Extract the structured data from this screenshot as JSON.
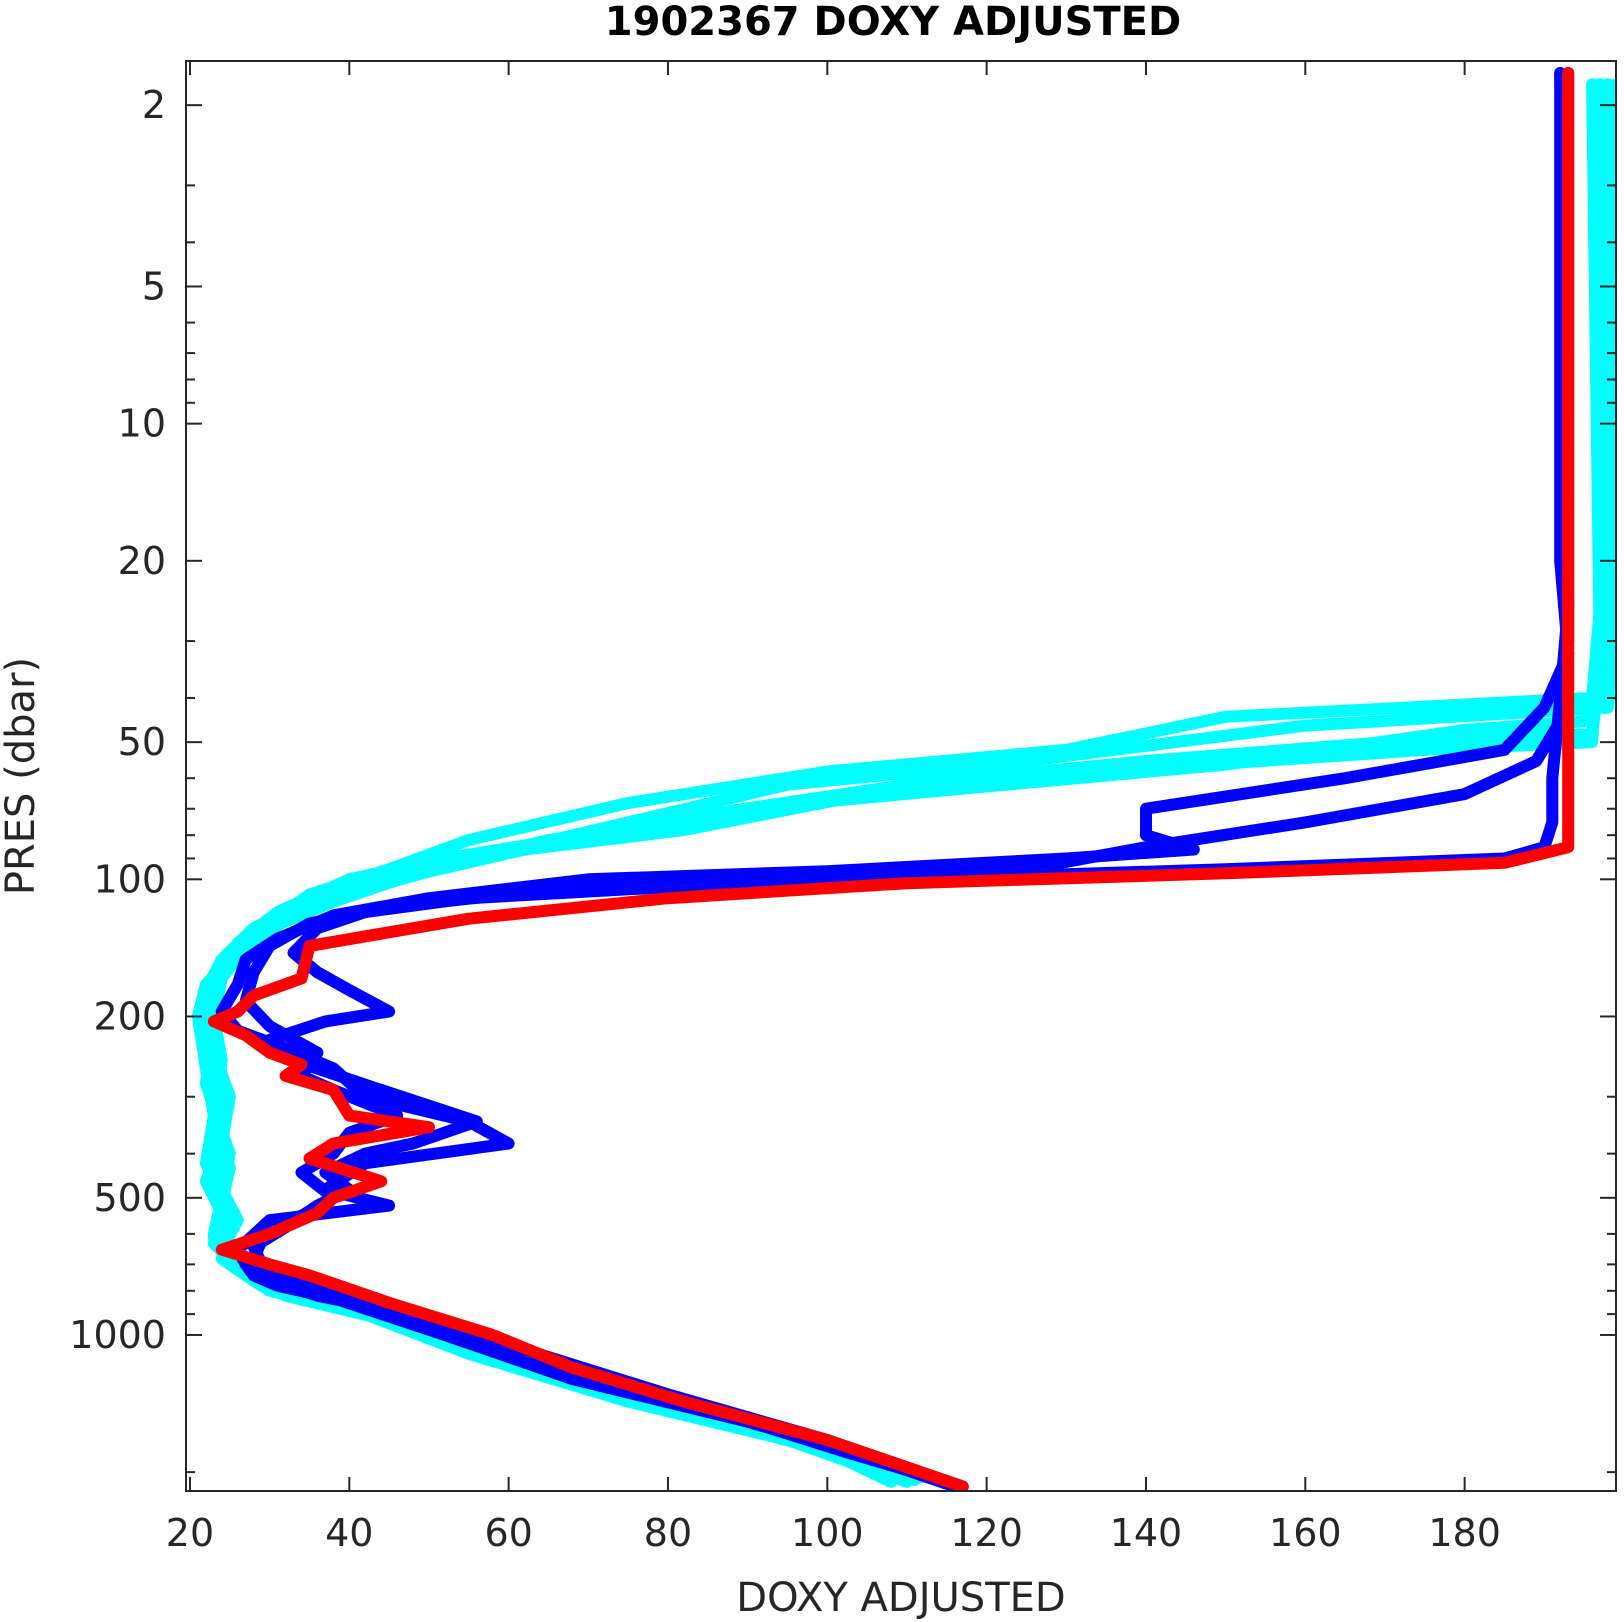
{
  "chart_data": {
    "type": "line",
    "title": "1902367  DOXY ADJUSTED",
    "xlabel": "DOXY ADJUSTED",
    "ylabel": "PRES (dbar)",
    "xlim": [
      19.5,
      199
    ],
    "ylim": [
      1.6,
      2200
    ],
    "yscale": "log",
    "y_reversed": true,
    "grid": false,
    "x_ticks": [
      20,
      40,
      60,
      80,
      100,
      120,
      140,
      160,
      180
    ],
    "y_ticks": [
      2,
      5,
      10,
      20,
      50,
      100,
      200,
      500,
      1000
    ],
    "colors": {
      "cyan": "#00ffff",
      "blue": "#0000ff",
      "red": "#ff0000",
      "axis": "#262626"
    },
    "series": [
      {
        "color": "#00ffff",
        "points": [
          [
            197,
            1.8
          ],
          [
            197,
            25
          ],
          [
            196,
            40
          ],
          [
            150,
            44
          ],
          [
            130,
            52
          ],
          [
            100,
            58
          ],
          [
            75,
            68
          ],
          [
            55,
            82
          ],
          [
            45,
            95
          ],
          [
            35,
            108
          ],
          [
            30,
            125
          ],
          [
            26,
            145
          ],
          [
            22,
            170
          ],
          [
            21,
            200
          ],
          [
            22,
            260
          ],
          [
            23,
            330
          ],
          [
            22,
            420
          ],
          [
            24,
            500
          ],
          [
            23,
            600
          ],
          [
            25,
            700
          ],
          [
            30,
            800
          ],
          [
            42,
            900
          ],
          [
            55,
            1100
          ],
          [
            75,
            1400
          ],
          [
            95,
            1700
          ],
          [
            110,
            2100
          ]
        ]
      },
      {
        "color": "#00ffff",
        "points": [
          [
            199,
            1.8
          ],
          [
            199,
            30
          ],
          [
            198,
            42
          ],
          [
            160,
            46
          ],
          [
            125,
            55
          ],
          [
            95,
            62
          ],
          [
            75,
            75
          ],
          [
            58,
            88
          ],
          [
            42,
            105
          ],
          [
            33,
            120
          ],
          [
            27,
            140
          ],
          [
            24,
            165
          ],
          [
            23,
            200
          ],
          [
            24,
            250
          ],
          [
            23,
            320
          ],
          [
            25,
            400
          ],
          [
            24,
            480
          ],
          [
            26,
            560
          ],
          [
            24,
            650
          ],
          [
            28,
            760
          ],
          [
            36,
            850
          ],
          [
            48,
            950
          ],
          [
            65,
            1200
          ],
          [
            85,
            1500
          ],
          [
            100,
            1800
          ],
          [
            108,
            2100
          ]
        ]
      },
      {
        "color": "#00ffff",
        "points": [
          [
            196,
            1.8
          ],
          [
            197,
            35
          ],
          [
            196,
            48
          ],
          [
            170,
            50
          ],
          [
            140,
            55
          ],
          [
            110,
            62
          ],
          [
            85,
            72
          ],
          [
            65,
            82
          ],
          [
            50,
            95
          ],
          [
            38,
            112
          ],
          [
            29,
            130
          ],
          [
            25,
            155
          ],
          [
            22,
            185
          ],
          [
            23,
            220
          ],
          [
            22,
            280
          ],
          [
            24,
            360
          ],
          [
            23,
            450
          ],
          [
            25,
            520
          ],
          [
            23,
            610
          ],
          [
            26,
            720
          ],
          [
            32,
            820
          ],
          [
            44,
            920
          ],
          [
            60,
            1150
          ],
          [
            80,
            1450
          ],
          [
            98,
            1750
          ],
          [
            112,
            2050
          ]
        ]
      },
      {
        "color": "#00ffff",
        "points": [
          [
            198,
            1.8
          ],
          [
            198,
            38
          ],
          [
            195,
            45
          ],
          [
            180,
            47
          ],
          [
            150,
            56
          ],
          [
            118,
            63
          ],
          [
            90,
            70
          ],
          [
            70,
            80
          ],
          [
            52,
            90
          ],
          [
            40,
            100
          ],
          [
            31,
            118
          ],
          [
            26,
            138
          ],
          [
            24,
            160
          ],
          [
            22,
            190
          ],
          [
            23,
            240
          ],
          [
            25,
            300
          ],
          [
            24,
            380
          ],
          [
            22,
            460
          ],
          [
            24,
            540
          ],
          [
            23,
            630
          ],
          [
            27,
            740
          ],
          [
            38,
            860
          ],
          [
            52,
            980
          ],
          [
            72,
            1300
          ],
          [
            92,
            1650
          ],
          [
            110,
            2000
          ]
        ]
      },
      {
        "color": "#00ffff",
        "points": [
          [
            197,
            1.8
          ],
          [
            197,
            28
          ],
          [
            196,
            50
          ],
          [
            175,
            52
          ],
          [
            135,
            58
          ],
          [
            105,
            65
          ],
          [
            82,
            78
          ],
          [
            62,
            86
          ],
          [
            48,
            98
          ],
          [
            36,
            110
          ],
          [
            28,
            128
          ],
          [
            24,
            150
          ],
          [
            22,
            175
          ],
          [
            23,
            210
          ],
          [
            24,
            270
          ],
          [
            23,
            340
          ],
          [
            25,
            430
          ],
          [
            24,
            510
          ],
          [
            25,
            590
          ],
          [
            24,
            680
          ],
          [
            29,
            780
          ],
          [
            40,
            880
          ],
          [
            56,
            1050
          ],
          [
            78,
            1380
          ],
          [
            96,
            1700
          ],
          [
            111,
            2080
          ]
        ]
      },
      {
        "color": "#0000ff",
        "points": [
          [
            192,
            1.7
          ],
          [
            192,
            20
          ],
          [
            193,
            32
          ],
          [
            190,
            42
          ],
          [
            185,
            52
          ],
          [
            165,
            60
          ],
          [
            140,
            70
          ],
          [
            140,
            80
          ],
          [
            146,
            86
          ],
          [
            130,
            90
          ],
          [
            100,
            96
          ],
          [
            70,
            100
          ],
          [
            50,
            110
          ],
          [
            38,
            120
          ],
          [
            31,
            135
          ],
          [
            27,
            150
          ],
          [
            26,
            170
          ],
          [
            24,
            195
          ],
          [
            26,
            215
          ],
          [
            32,
            235
          ],
          [
            38,
            260
          ],
          [
            42,
            300
          ],
          [
            55,
            340
          ],
          [
            60,
            380
          ],
          [
            42,
            420
          ],
          [
            37,
            480
          ],
          [
            45,
            520
          ],
          [
            30,
            560
          ],
          [
            26,
            650
          ],
          [
            27,
            700
          ],
          [
            28,
            740
          ],
          [
            31,
            780
          ],
          [
            38,
            830
          ],
          [
            52,
            1000
          ],
          [
            68,
            1250
          ],
          [
            90,
            1550
          ],
          [
            105,
            1850
          ],
          [
            116,
            2150
          ]
        ]
      },
      {
        "color": "#0000ff",
        "points": [
          [
            193,
            1.7
          ],
          [
            193,
            30
          ],
          [
            192,
            45
          ],
          [
            189,
            55
          ],
          [
            180,
            65
          ],
          [
            160,
            75
          ],
          [
            140,
            85
          ],
          [
            125,
            95
          ],
          [
            105,
            100
          ],
          [
            80,
            103
          ],
          [
            60,
            108
          ],
          [
            45,
            115
          ],
          [
            35,
            125
          ],
          [
            30,
            140
          ],
          [
            28,
            160
          ],
          [
            27,
            185
          ],
          [
            30,
            210
          ],
          [
            36,
            240
          ],
          [
            34,
            270
          ],
          [
            38,
            290
          ],
          [
            46,
            330
          ],
          [
            40,
            360
          ],
          [
            38,
            400
          ],
          [
            34,
            440
          ],
          [
            38,
            500
          ],
          [
            33,
            560
          ],
          [
            29,
            620
          ],
          [
            28,
            680
          ],
          [
            30,
            730
          ],
          [
            34,
            770
          ],
          [
            45,
            880
          ],
          [
            60,
            1050
          ],
          [
            80,
            1350
          ],
          [
            100,
            1700
          ],
          [
            117,
            2150
          ]
        ]
      },
      {
        "color": "#0000ff",
        "points": [
          [
            192,
            1.7
          ],
          [
            193,
            25
          ],
          [
            192,
            40
          ],
          [
            191,
            60
          ],
          [
            191,
            75
          ],
          [
            190,
            85
          ],
          [
            185,
            90
          ],
          [
            150,
            95
          ],
          [
            110,
            100
          ],
          [
            80,
            104
          ],
          [
            55,
            110
          ],
          [
            42,
            118
          ],
          [
            36,
            128
          ],
          [
            33,
            145
          ],
          [
            36,
            160
          ],
          [
            40,
            175
          ],
          [
            45,
            195
          ],
          [
            37,
            205
          ],
          [
            30,
            225
          ],
          [
            33,
            250
          ],
          [
            44,
            290
          ],
          [
            56,
            340
          ],
          [
            48,
            380
          ],
          [
            42,
            400
          ],
          [
            37,
            440
          ],
          [
            40,
            480
          ],
          [
            36,
            520
          ],
          [
            32,
            580
          ],
          [
            28,
            640
          ],
          [
            29,
            700
          ],
          [
            30,
            760
          ],
          [
            36,
            820
          ],
          [
            50,
            920
          ],
          [
            62,
            1150
          ],
          [
            85,
            1450
          ],
          [
            102,
            1800
          ],
          [
            117,
            2150
          ]
        ]
      },
      {
        "color": "#ff0000",
        "points": [
          [
            193,
            1.7
          ],
          [
            193,
            30
          ],
          [
            193,
            50
          ],
          [
            193,
            70
          ],
          [
            193,
            85
          ],
          [
            185,
            92
          ],
          [
            150,
            97
          ],
          [
            110,
            102
          ],
          [
            80,
            110
          ],
          [
            55,
            122
          ],
          [
            35,
            140
          ],
          [
            34,
            165
          ],
          [
            28,
            180
          ],
          [
            26,
            195
          ],
          [
            23,
            205
          ],
          [
            27,
            220
          ],
          [
            30,
            240
          ],
          [
            34,
            255
          ],
          [
            32,
            270
          ],
          [
            38,
            290
          ],
          [
            40,
            330
          ],
          [
            50,
            350
          ],
          [
            38,
            380
          ],
          [
            35,
            410
          ],
          [
            44,
            460
          ],
          [
            38,
            500
          ],
          [
            36,
            540
          ],
          [
            30,
            600
          ],
          [
            24,
            650
          ],
          [
            30,
            700
          ],
          [
            35,
            740
          ],
          [
            45,
            850
          ],
          [
            58,
            1000
          ],
          [
            68,
            1180
          ],
          [
            82,
            1400
          ],
          [
            100,
            1700
          ],
          [
            117,
            2150
          ]
        ]
      }
    ]
  }
}
